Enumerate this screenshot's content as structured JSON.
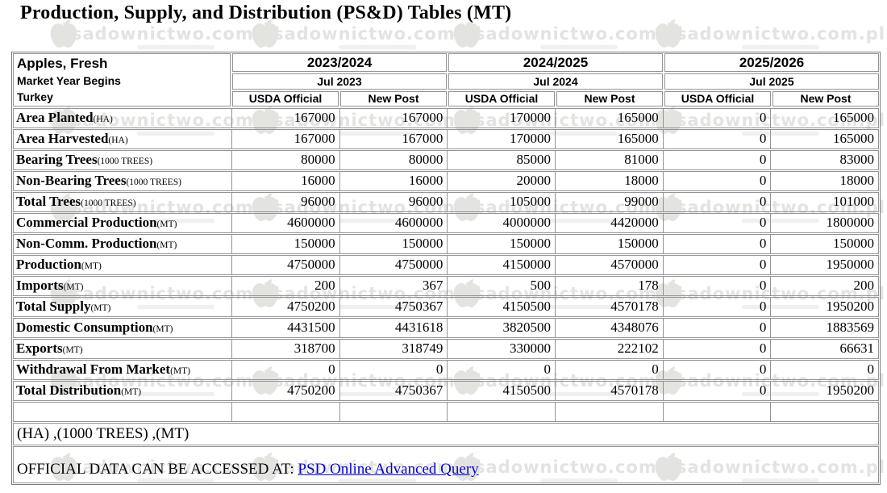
{
  "page": {
    "title": "Production, Supply, and Distribution (PS&D) Tables (MT)"
  },
  "table": {
    "commodity": "Apples, Fresh",
    "market_year_label": "Market Year Begins",
    "country": "Turkey",
    "year_groups": [
      {
        "year": "2023/2024",
        "begins": "Jul 2023"
      },
      {
        "year": "2024/2025",
        "begins": "Jul 2024"
      },
      {
        "year": "2025/2026",
        "begins": "Jul 2025"
      }
    ],
    "subcolumns": [
      "USDA Official",
      "New Post"
    ],
    "rows": [
      {
        "label": "Area Planted",
        "unit": "(HA)",
        "values": [
          "167000",
          "167000",
          "170000",
          "165000",
          "0",
          "165000"
        ]
      },
      {
        "label": "Area Harvested",
        "unit": "(HA)",
        "values": [
          "167000",
          "167000",
          "170000",
          "165000",
          "0",
          "165000"
        ]
      },
      {
        "label": "Bearing Trees",
        "unit": "(1000 TREES)",
        "values": [
          "80000",
          "80000",
          "85000",
          "81000",
          "0",
          "83000"
        ]
      },
      {
        "label": "Non-Bearing Trees",
        "unit": "(1000 TREES)",
        "values": [
          "16000",
          "16000",
          "20000",
          "18000",
          "0",
          "18000"
        ]
      },
      {
        "label": "Total Trees",
        "unit": "(1000 TREES)",
        "values": [
          "96000",
          "96000",
          "105000",
          "99000",
          "0",
          "101000"
        ]
      },
      {
        "label": "Commercial Production",
        "unit": "(MT)",
        "values": [
          "4600000",
          "4600000",
          "4000000",
          "4420000",
          "0",
          "1800000"
        ]
      },
      {
        "label": "Non-Comm. Production",
        "unit": "(MT)",
        "values": [
          "150000",
          "150000",
          "150000",
          "150000",
          "0",
          "150000"
        ]
      },
      {
        "label": "Production",
        "unit": "(MT)",
        "values": [
          "4750000",
          "4750000",
          "4150000",
          "4570000",
          "0",
          "1950000"
        ]
      },
      {
        "label": "Imports",
        "unit": "(MT)",
        "values": [
          "200",
          "367",
          "500",
          "178",
          "0",
          "200"
        ]
      },
      {
        "label": "Total Supply",
        "unit": "(MT)",
        "values": [
          "4750200",
          "4750367",
          "4150500",
          "4570178",
          "0",
          "1950200"
        ]
      },
      {
        "label": "Domestic Consumption",
        "unit": "(MT)",
        "values": [
          "4431500",
          "4431618",
          "3820500",
          "4348076",
          "0",
          "1883569"
        ]
      },
      {
        "label": "Exports",
        "unit": "(MT)",
        "values": [
          "318700",
          "318749",
          "330000",
          "222102",
          "0",
          "66631"
        ]
      },
      {
        "label": "Withdrawal From Market",
        "unit": "(MT)",
        "values": [
          "0",
          "0",
          "0",
          "0",
          "0",
          "0"
        ]
      },
      {
        "label": "Total Distribution",
        "unit": "(MT)",
        "values": [
          "4750200",
          "4750367",
          "4150500",
          "4570178",
          "0",
          "1950200"
        ]
      },
      {
        "label": "",
        "unit": "",
        "values": [
          "",
          "",
          "",
          "",
          "",
          ""
        ]
      }
    ],
    "units_note": "(HA) ,(1000 TREES) ,(MT)",
    "footer": {
      "text": "OFFICIAL DATA CAN BE ACCESSED AT: ",
      "link_label": "PSD Online Advanced Query",
      "link_color": "#0000cc"
    }
  },
  "watermark": {
    "text": "sadownictwo.com.pl",
    "color": "#e3e3e0"
  }
}
